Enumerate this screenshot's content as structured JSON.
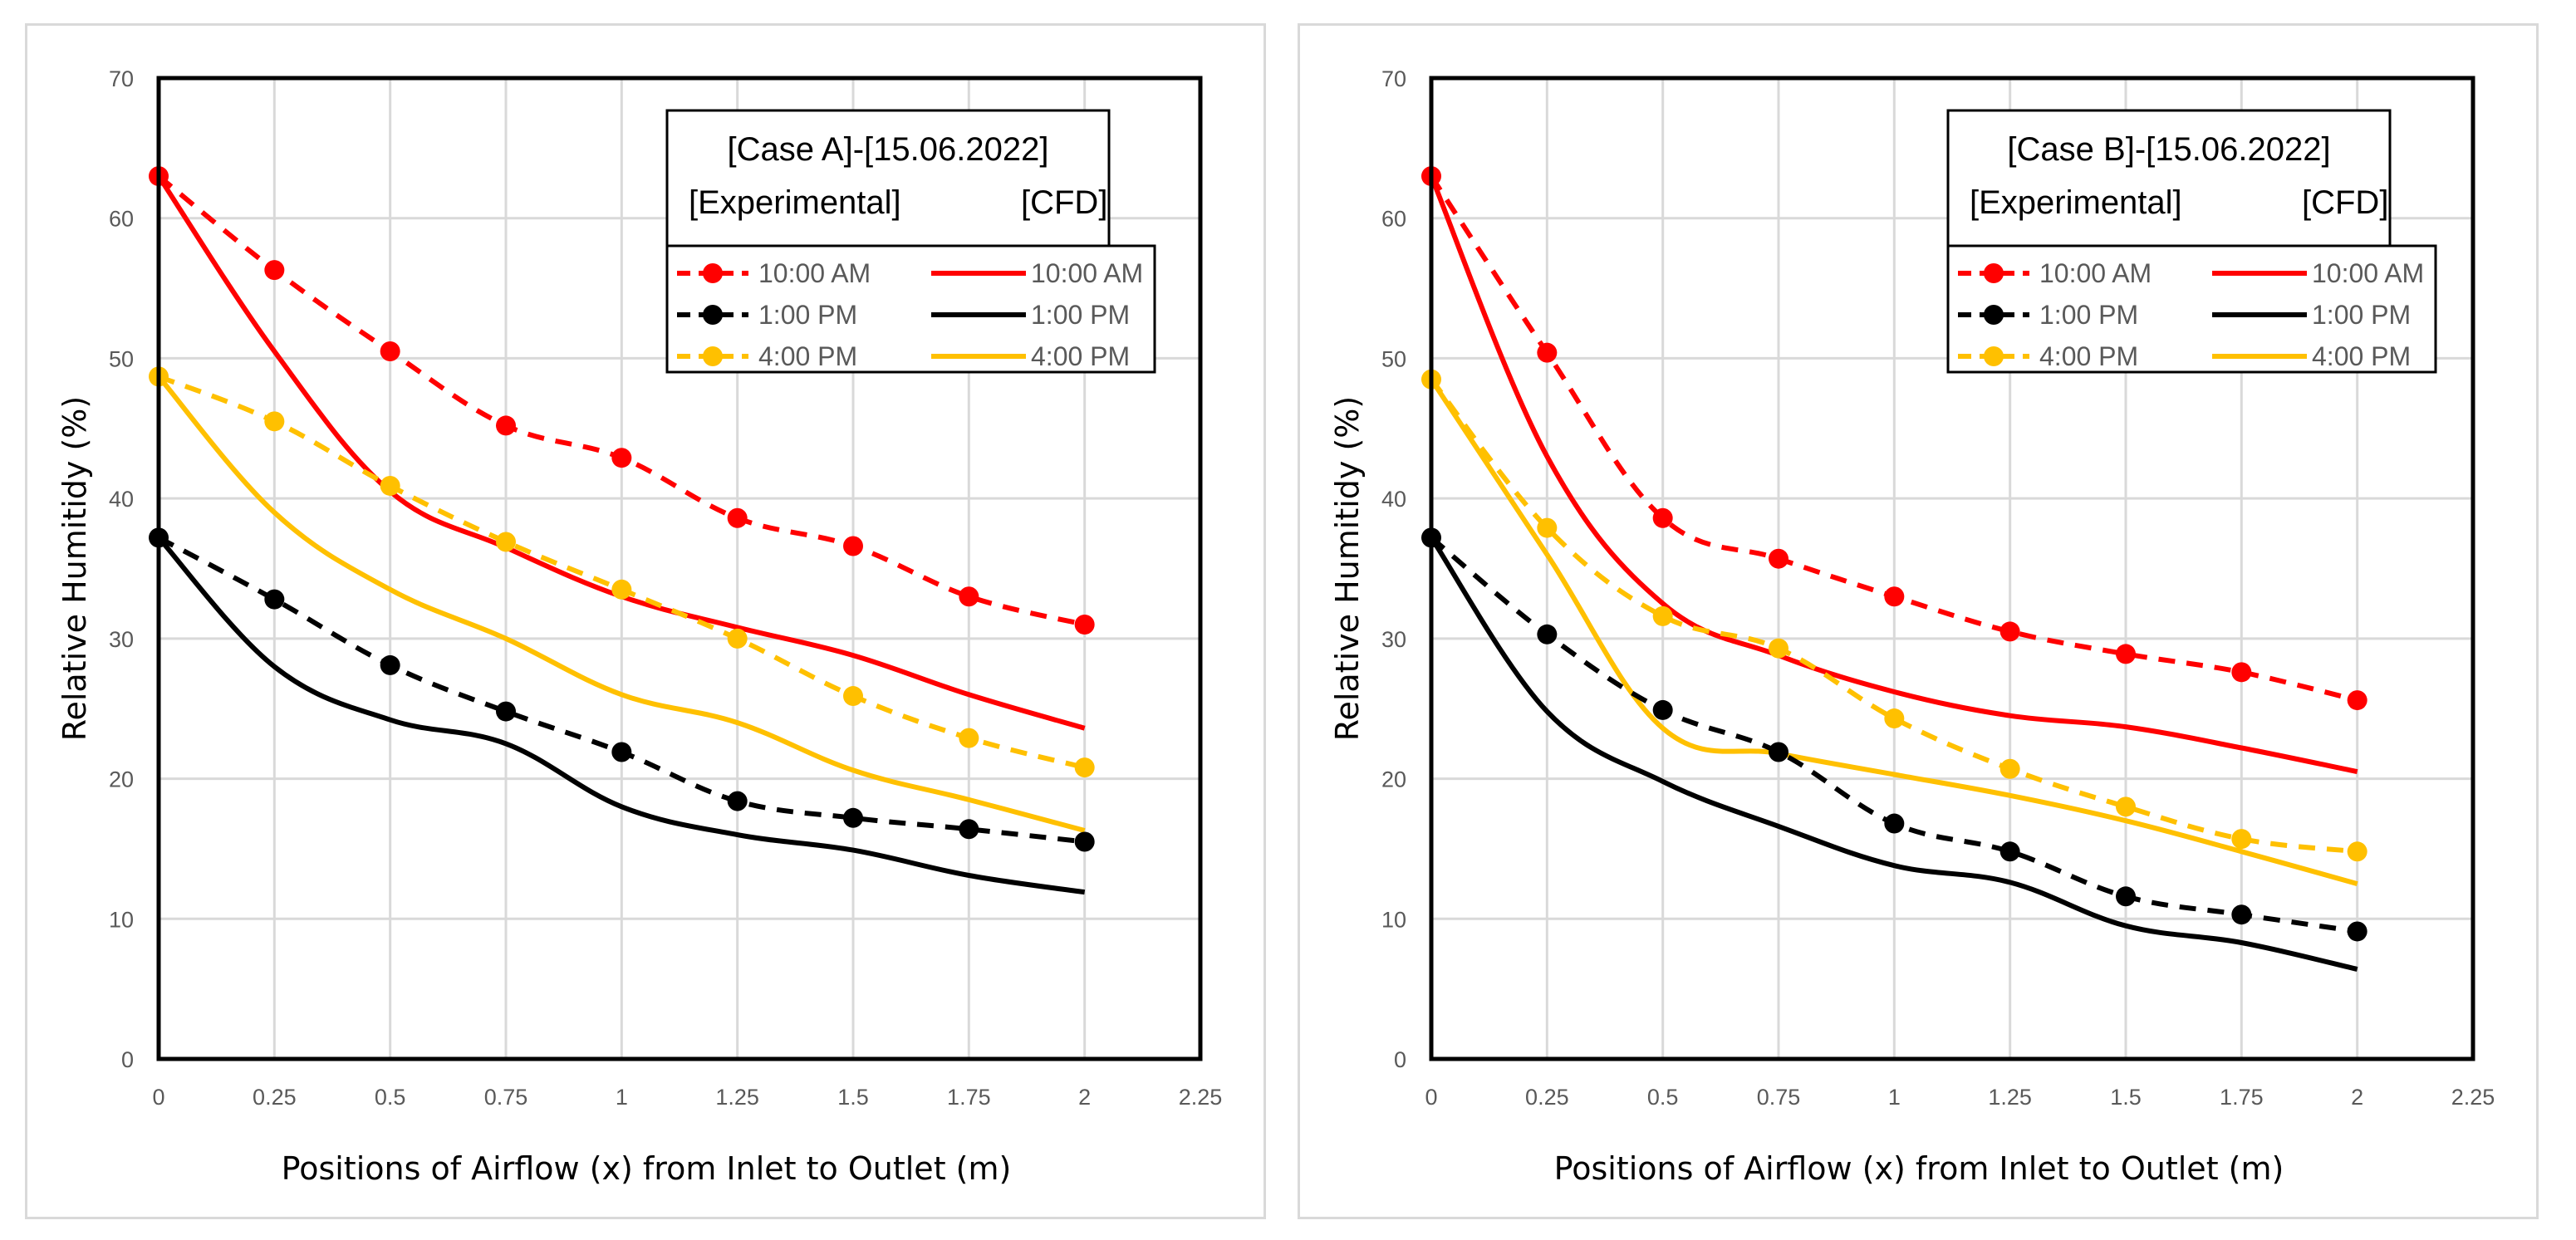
{
  "charts": [
    {
      "id": "a",
      "xlabel": "Positions of Airflow (x) from Inlet to Outlet (m)",
      "ylabel": "Relative Humitidy (%)",
      "legend_title": "[Case A]-[15.06.2022]",
      "legend_col1": "[Experimental]",
      "legend_col2": "[CFD]"
    },
    {
      "id": "b",
      "xlabel": "Positions of Airflow (x) from Inlet to Outlet (m)",
      "ylabel": "Relative Humitidy (%)",
      "legend_title": "[Case B]-[15.06.2022]",
      "legend_col1": "[Experimental]",
      "legend_col2": "[CFD]"
    }
  ],
  "chart_data": [
    {
      "type": "line",
      "title": "[Case A]-[15.06.2022]",
      "xlabel": "Positions of Airflow (x) from Inlet to Outlet (m)",
      "ylabel": "Relative Humitidy (%)",
      "xlim": [
        0,
        2.25
      ],
      "ylim": [
        0,
        70
      ],
      "xticks": [
        "0",
        "0.25",
        "0.5",
        "0.75",
        "1",
        "1.25",
        "1.5",
        "1.75",
        "2",
        "2.25"
      ],
      "yticks": [
        "0",
        "10",
        "20",
        "30",
        "40",
        "50",
        "60",
        "70"
      ],
      "grid": true,
      "legend": "top-right",
      "x": [
        0,
        0.25,
        0.5,
        0.75,
        1,
        1.25,
        1.5,
        1.75,
        2
      ],
      "series": [
        {
          "name": "10:00 AM",
          "kind": "Experimental",
          "color": "#ff0000",
          "dashed": true,
          "markers": true,
          "values": [
            63,
            56.3,
            50.5,
            45.2,
            42.9,
            38.6,
            36.6,
            33,
            31
          ]
        },
        {
          "name": "1:00 PM",
          "kind": "Experimental",
          "color": "#000000",
          "dashed": true,
          "markers": true,
          "values": [
            37.2,
            32.8,
            28.1,
            24.8,
            21.9,
            18.4,
            17.2,
            16.4,
            15.5
          ]
        },
        {
          "name": "4:00 PM",
          "kind": "Experimental",
          "color": "#ffc000",
          "dashed": true,
          "markers": true,
          "values": [
            48.7,
            45.5,
            40.9,
            36.9,
            33.5,
            30,
            25.9,
            22.9,
            20.8
          ]
        },
        {
          "name": "10:00 AM",
          "kind": "CFD",
          "color": "#ff0000",
          "dashed": false,
          "markers": false,
          "values": [
            63,
            50.5,
            40.5,
            36.5,
            33,
            30.8,
            28.8,
            26,
            23.6
          ]
        },
        {
          "name": "1:00 PM",
          "kind": "CFD",
          "color": "#000000",
          "dashed": false,
          "markers": false,
          "values": [
            37.2,
            28,
            24.2,
            22.5,
            18,
            16,
            14.9,
            13.1,
            11.9
          ]
        },
        {
          "name": "4:00 PM",
          "kind": "CFD",
          "color": "#ffc000",
          "dashed": false,
          "markers": false,
          "values": [
            48.7,
            39,
            33.5,
            30,
            26,
            24,
            20.6,
            18.5,
            16.3
          ]
        }
      ]
    },
    {
      "type": "line",
      "title": "[Case B]-[15.06.2022]",
      "xlabel": "Positions of Airflow (x) from Inlet to Outlet (m)",
      "ylabel": "Relative Humitidy (%)",
      "xlim": [
        0,
        2.25
      ],
      "ylim": [
        0,
        70
      ],
      "xticks": [
        "0",
        "0.25",
        "0.5",
        "0.75",
        "1",
        "1.25",
        "1.5",
        "1.75",
        "2",
        "2.25"
      ],
      "yticks": [
        "0",
        "10",
        "20",
        "30",
        "40",
        "50",
        "60",
        "70"
      ],
      "grid": true,
      "legend": "top-right",
      "x": [
        0,
        0.25,
        0.5,
        0.75,
        1,
        1.25,
        1.5,
        1.75,
        2
      ],
      "series": [
        {
          "name": "10:00 AM",
          "kind": "Experimental",
          "color": "#ff0000",
          "dashed": true,
          "markers": true,
          "values": [
            63,
            50.4,
            38.6,
            35.7,
            33,
            30.5,
            28.9,
            27.6,
            25.6
          ]
        },
        {
          "name": "1:00 PM",
          "kind": "Experimental",
          "color": "#000000",
          "dashed": true,
          "markers": true,
          "values": [
            37.2,
            30.3,
            24.9,
            21.9,
            16.8,
            14.8,
            11.6,
            10.3,
            9.1
          ]
        },
        {
          "name": "4:00 PM",
          "kind": "Experimental",
          "color": "#ffc000",
          "dashed": true,
          "markers": true,
          "values": [
            48.5,
            37.9,
            31.6,
            29.3,
            24.3,
            20.7,
            18,
            15.7,
            14.8
          ]
        },
        {
          "name": "10:00 AM",
          "kind": "CFD",
          "color": "#ff0000",
          "dashed": false,
          "markers": false,
          "values": [
            63,
            43,
            32.5,
            28.8,
            26.2,
            24.5,
            23.7,
            22.2,
            20.5
          ]
        },
        {
          "name": "1:00 PM",
          "kind": "CFD",
          "color": "#000000",
          "dashed": false,
          "markers": false,
          "values": [
            37.2,
            24.8,
            19.8,
            16.6,
            13.8,
            12.6,
            9.5,
            8.3,
            6.4
          ]
        },
        {
          "name": "4:00 PM",
          "kind": "CFD",
          "color": "#ffc000",
          "dashed": false,
          "markers": false,
          "values": [
            48.5,
            36,
            23.6,
            21.8,
            20.3,
            18.8,
            17,
            14.8,
            12.5
          ]
        }
      ]
    }
  ]
}
